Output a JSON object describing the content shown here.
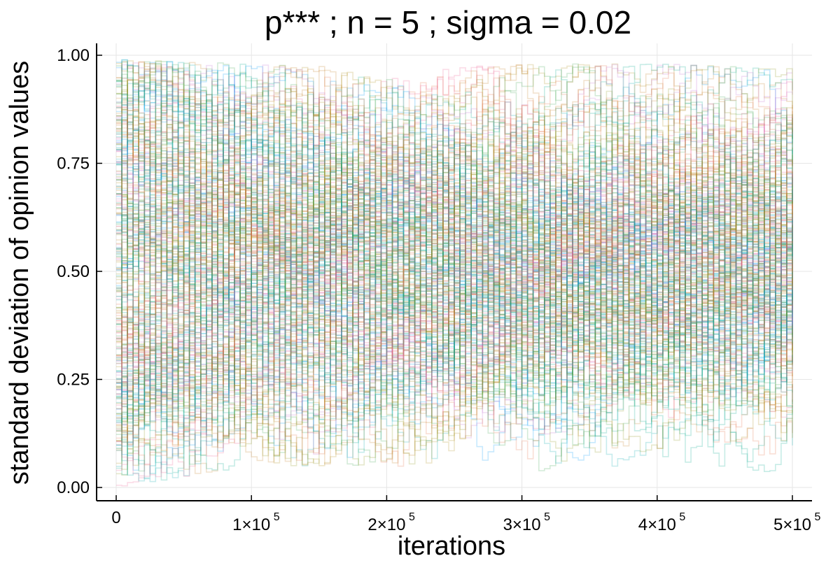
{
  "chart_data": {
    "type": "line",
    "title": "p***  ; n = 5 ; sigma = 0.02",
    "xlabel": "iterations",
    "ylabel": "standard deviation of opinion values",
    "xlim": [
      0,
      500000
    ],
    "ylim": [
      0.0,
      1.0
    ],
    "grid": true,
    "legend": "none",
    "x_ticks": [
      {
        "value": 0,
        "mantissa": "0",
        "exponent": ""
      },
      {
        "value": 100000,
        "mantissa": "1×10",
        "exponent": "5"
      },
      {
        "value": 200000,
        "mantissa": "2×10",
        "exponent": "5"
      },
      {
        "value": 300000,
        "mantissa": "3×10",
        "exponent": "5"
      },
      {
        "value": 400000,
        "mantissa": "4×10",
        "exponent": "5"
      },
      {
        "value": 500000,
        "mantissa": "5×10",
        "exponent": "5"
      }
    ],
    "y_ticks": [
      {
        "value": 0.0,
        "label": "0.00"
      },
      {
        "value": 0.25,
        "label": "0.25"
      },
      {
        "value": 0.5,
        "label": "0.50"
      },
      {
        "value": 0.75,
        "label": "0.75"
      },
      {
        "value": 1.0,
        "label": "1.00"
      }
    ],
    "series_palette": [
      "#009af9",
      "#e26f46",
      "#3da44d",
      "#c271d2",
      "#ac8e18",
      "#00a9ad",
      "#ed5e93",
      "#c68125",
      "#00a98d",
      "#8e971d"
    ],
    "series_summary": {
      "count": 300,
      "line_alpha": 0.22,
      "envelope_x": [
        0,
        100000,
        200000,
        300000,
        400000,
        500000
      ],
      "envelope_min": [
        0.0,
        0.05,
        0.05,
        0.03,
        0.05,
        0.03
      ],
      "envelope_max": [
        0.99,
        0.98,
        0.97,
        0.98,
        0.98,
        0.97
      ],
      "core_band_x": [
        0,
        100000,
        200000,
        300000,
        400000,
        500000
      ],
      "core_band_low": [
        0.15,
        0.14,
        0.15,
        0.14,
        0.15,
        0.15
      ],
      "core_band_high": [
        0.95,
        0.9,
        0.89,
        0.9,
        0.89,
        0.88
      ]
    }
  }
}
